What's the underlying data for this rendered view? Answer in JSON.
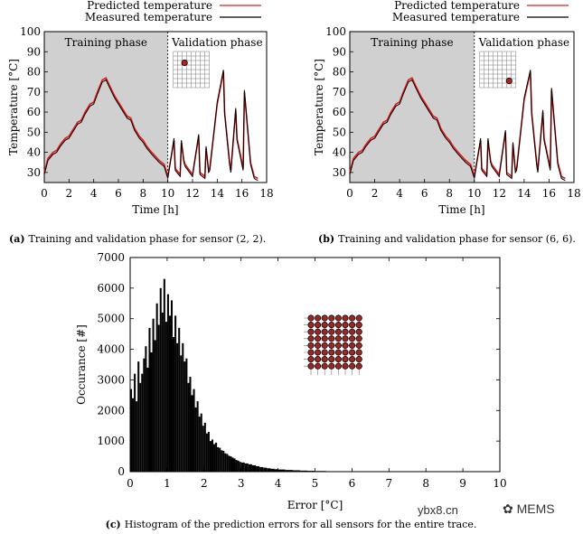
{
  "chart_data": [
    {
      "id": "a",
      "type": "line",
      "caption_label": "(a)",
      "caption_text": "Training and validation phase for sensor (2, 2).",
      "xlabel": "Time [h]",
      "ylabel": "Temperature [°C]",
      "xlim": [
        0,
        18
      ],
      "ylim": [
        25,
        100
      ],
      "xticks": [
        0,
        2,
        4,
        6,
        8,
        10,
        12,
        14,
        16,
        18
      ],
      "yticks": [
        30,
        40,
        50,
        60,
        70,
        80,
        90,
        100
      ],
      "phase_split": 10,
      "training_label": "Training phase",
      "validation_label": "Validation phase",
      "legend": [
        "Predicted temperature",
        "Measured temperature"
      ],
      "sensor": [
        2,
        2
      ],
      "series": [
        {
          "name": "Predicted temperature",
          "color": "#e31a1c",
          "x": [
            0,
            0.3,
            0.7,
            1,
            1.3,
            1.7,
            2,
            2.3,
            2.7,
            3,
            3.3,
            3.7,
            4,
            4.3,
            4.7,
            5,
            5.3,
            5.7,
            6,
            6.3,
            6.7,
            7,
            7.3,
            7.7,
            8,
            8.3,
            8.7,
            9,
            9.3,
            9.7,
            10,
            10.5,
            10.6,
            11,
            11.1,
            11.3,
            11.4,
            12,
            12.5,
            12.6,
            13,
            13.1,
            13.3,
            13.4,
            14,
            14.5,
            14.6,
            15,
            15.1,
            15.5,
            15.6,
            16.1,
            16.2,
            16.7,
            17,
            17.3
          ],
          "y": [
            30,
            37,
            40,
            41,
            44,
            47,
            48,
            51,
            55,
            56,
            60,
            64,
            65,
            70,
            76,
            77,
            73,
            68,
            65,
            62,
            58,
            57,
            52,
            48,
            46,
            43,
            40,
            38,
            36,
            34,
            28,
            46,
            32,
            29,
            45,
            36,
            34,
            29,
            48,
            30,
            28,
            42,
            31,
            32,
            64,
            80,
            60,
            35,
            31,
            61,
            47,
            32,
            70,
            35,
            28,
            27
          ]
        },
        {
          "name": "Measured temperature",
          "color": "#000000",
          "x": [
            0,
            0.3,
            0.7,
            1,
            1.3,
            1.7,
            2,
            2.3,
            2.7,
            3,
            3.3,
            3.7,
            4,
            4.3,
            4.7,
            5,
            5.3,
            5.7,
            6,
            6.3,
            6.7,
            7,
            7.3,
            7.7,
            8,
            8.3,
            8.7,
            9,
            9.3,
            9.7,
            10,
            10.5,
            10.6,
            11,
            11.1,
            11.3,
            11.4,
            12,
            12.5,
            12.6,
            13,
            13.1,
            13.3,
            13.4,
            14,
            14.5,
            14.6,
            15,
            15.1,
            15.5,
            15.6,
            16.1,
            16.2,
            16.7,
            17,
            17.3
          ],
          "y": [
            29,
            36,
            39,
            40,
            43,
            46,
            47,
            50,
            54,
            55,
            59,
            63,
            64,
            69,
            75,
            76,
            72,
            67,
            64,
            61,
            57,
            56,
            51,
            47,
            45,
            42,
            39,
            37,
            35,
            33,
            27,
            47,
            31,
            28,
            46,
            35,
            33,
            28,
            49,
            29,
            27,
            43,
            30,
            31,
            65,
            81,
            59,
            34,
            30,
            62,
            46,
            31,
            71,
            34,
            27,
            26
          ]
        }
      ]
    },
    {
      "id": "b",
      "type": "line",
      "caption_label": "(b)",
      "caption_text": "Training and validation phase for sensor (6, 6).",
      "xlabel": "Time [h]",
      "ylabel": "Temperature [°C]",
      "xlim": [
        0,
        18
      ],
      "ylim": [
        25,
        100
      ],
      "xticks": [
        0,
        2,
        4,
        6,
        8,
        10,
        12,
        14,
        16,
        18
      ],
      "yticks": [
        30,
        40,
        50,
        60,
        70,
        80,
        90,
        100
      ],
      "phase_split": 10,
      "training_label": "Training phase",
      "validation_label": "Validation phase",
      "legend": [
        "Predicted temperature",
        "Measured temperature"
      ],
      "sensor": [
        6,
        6
      ],
      "series": [
        {
          "name": "Predicted temperature",
          "color": "#e31a1c",
          "x": [
            0,
            0.3,
            0.7,
            1,
            1.3,
            1.7,
            2,
            2.3,
            2.7,
            3,
            3.3,
            3.7,
            4,
            4.3,
            4.7,
            5,
            5.3,
            5.7,
            6,
            6.3,
            6.7,
            7,
            7.3,
            7.7,
            8,
            8.3,
            8.7,
            9,
            9.3,
            9.7,
            10,
            10.5,
            10.6,
            11,
            11.1,
            11.3,
            11.4,
            12,
            12.5,
            12.6,
            13,
            13.1,
            13.3,
            13.4,
            14,
            14.5,
            14.6,
            15,
            15.1,
            15.5,
            15.6,
            16.1,
            16.2,
            16.7,
            17,
            17.3
          ],
          "y": [
            30,
            37,
            40,
            41,
            44,
            47,
            48,
            51,
            55,
            56,
            60,
            64,
            65,
            70,
            76,
            77,
            73,
            68,
            65,
            62,
            58,
            57,
            52,
            48,
            46,
            43,
            40,
            38,
            36,
            34,
            28,
            46,
            32,
            29,
            46,
            36,
            34,
            29,
            50,
            30,
            28,
            44,
            31,
            32,
            66,
            80,
            60,
            35,
            31,
            60,
            47,
            32,
            71,
            35,
            28,
            27
          ]
        },
        {
          "name": "Measured temperature",
          "color": "#000000",
          "x": [
            0,
            0.3,
            0.7,
            1,
            1.3,
            1.7,
            2,
            2.3,
            2.7,
            3,
            3.3,
            3.7,
            4,
            4.3,
            4.7,
            5,
            5.3,
            5.7,
            6,
            6.3,
            6.7,
            7,
            7.3,
            7.7,
            8,
            8.3,
            8.7,
            9,
            9.3,
            9.7,
            10,
            10.5,
            10.6,
            11,
            11.1,
            11.3,
            11.4,
            12,
            12.5,
            12.6,
            13,
            13.1,
            13.3,
            13.4,
            14,
            14.5,
            14.6,
            15,
            15.1,
            15.5,
            15.6,
            16.1,
            16.2,
            16.7,
            17,
            17.3
          ],
          "y": [
            29,
            36,
            39,
            40,
            43,
            46,
            47,
            50,
            54,
            55,
            59,
            63,
            64,
            69,
            75,
            76,
            72,
            67,
            64,
            61,
            57,
            56,
            51,
            47,
            45,
            42,
            39,
            37,
            35,
            33,
            27,
            47,
            31,
            28,
            47,
            35,
            33,
            28,
            51,
            29,
            27,
            45,
            30,
            31,
            67,
            81,
            59,
            34,
            30,
            61,
            46,
            31,
            72,
            34,
            27,
            26
          ]
        }
      ]
    },
    {
      "id": "c",
      "type": "bar",
      "caption_label": "(c)",
      "caption_text": "Histogram of the prediction errors for all sensors for the entire trace.",
      "xlabel": "Error [°C]",
      "ylabel": "Occurance [#]",
      "xlim": [
        0,
        10
      ],
      "ylim": [
        0,
        7000
      ],
      "xticks": [
        0,
        1,
        2,
        3,
        4,
        5,
        6,
        7,
        8,
        9,
        10
      ],
      "yticks": [
        0,
        1000,
        2000,
        3000,
        4000,
        5000,
        6000,
        7000
      ],
      "sensor_grid": [
        8,
        8
      ],
      "bin_width": 0.05,
      "x": [
        0.0,
        0.05,
        0.1,
        0.15,
        0.2,
        0.25,
        0.3,
        0.35,
        0.4,
        0.45,
        0.5,
        0.55,
        0.6,
        0.65,
        0.7,
        0.75,
        0.8,
        0.85,
        0.9,
        0.95,
        1.0,
        1.05,
        1.1,
        1.15,
        1.2,
        1.25,
        1.3,
        1.35,
        1.4,
        1.45,
        1.5,
        1.55,
        1.6,
        1.65,
        1.7,
        1.75,
        1.8,
        1.85,
        1.9,
        1.95,
        2.0,
        2.05,
        2.1,
        2.15,
        2.2,
        2.25,
        2.3,
        2.35,
        2.4,
        2.45,
        2.5,
        2.55,
        2.6,
        2.65,
        2.7,
        2.75,
        2.8,
        2.85,
        2.9,
        2.95,
        3.0,
        3.1,
        3.2,
        3.3,
        3.4,
        3.5,
        3.6,
        3.7,
        3.8,
        3.9,
        4.0,
        4.2,
        4.4,
        4.6,
        4.8,
        5.0,
        5.3,
        5.6,
        5.9,
        6.2
      ],
      "values": [
        2700,
        2400,
        3200,
        2300,
        3600,
        2900,
        3200,
        3700,
        4100,
        3400,
        4700,
        3900,
        5000,
        4300,
        5500,
        4800,
        6000,
        5200,
        6300,
        4900,
        5800,
        5100,
        5600,
        4400,
        5100,
        4200,
        4700,
        3800,
        4200,
        3600,
        3700,
        2900,
        3100,
        2500,
        2700,
        2100,
        2300,
        1800,
        1900,
        1500,
        1600,
        1250,
        1300,
        1000,
        1050,
        900,
        950,
        800,
        780,
        700,
        680,
        600,
        580,
        520,
        500,
        460,
        430,
        380,
        360,
        320,
        300,
        270,
        240,
        210,
        180,
        150,
        130,
        110,
        95,
        80,
        70,
        55,
        45,
        35,
        28,
        22,
        15,
        10,
        7,
        5
      ]
    }
  ],
  "watermark": {
    "site": "ybx8.cn",
    "brand": "MEMS"
  }
}
